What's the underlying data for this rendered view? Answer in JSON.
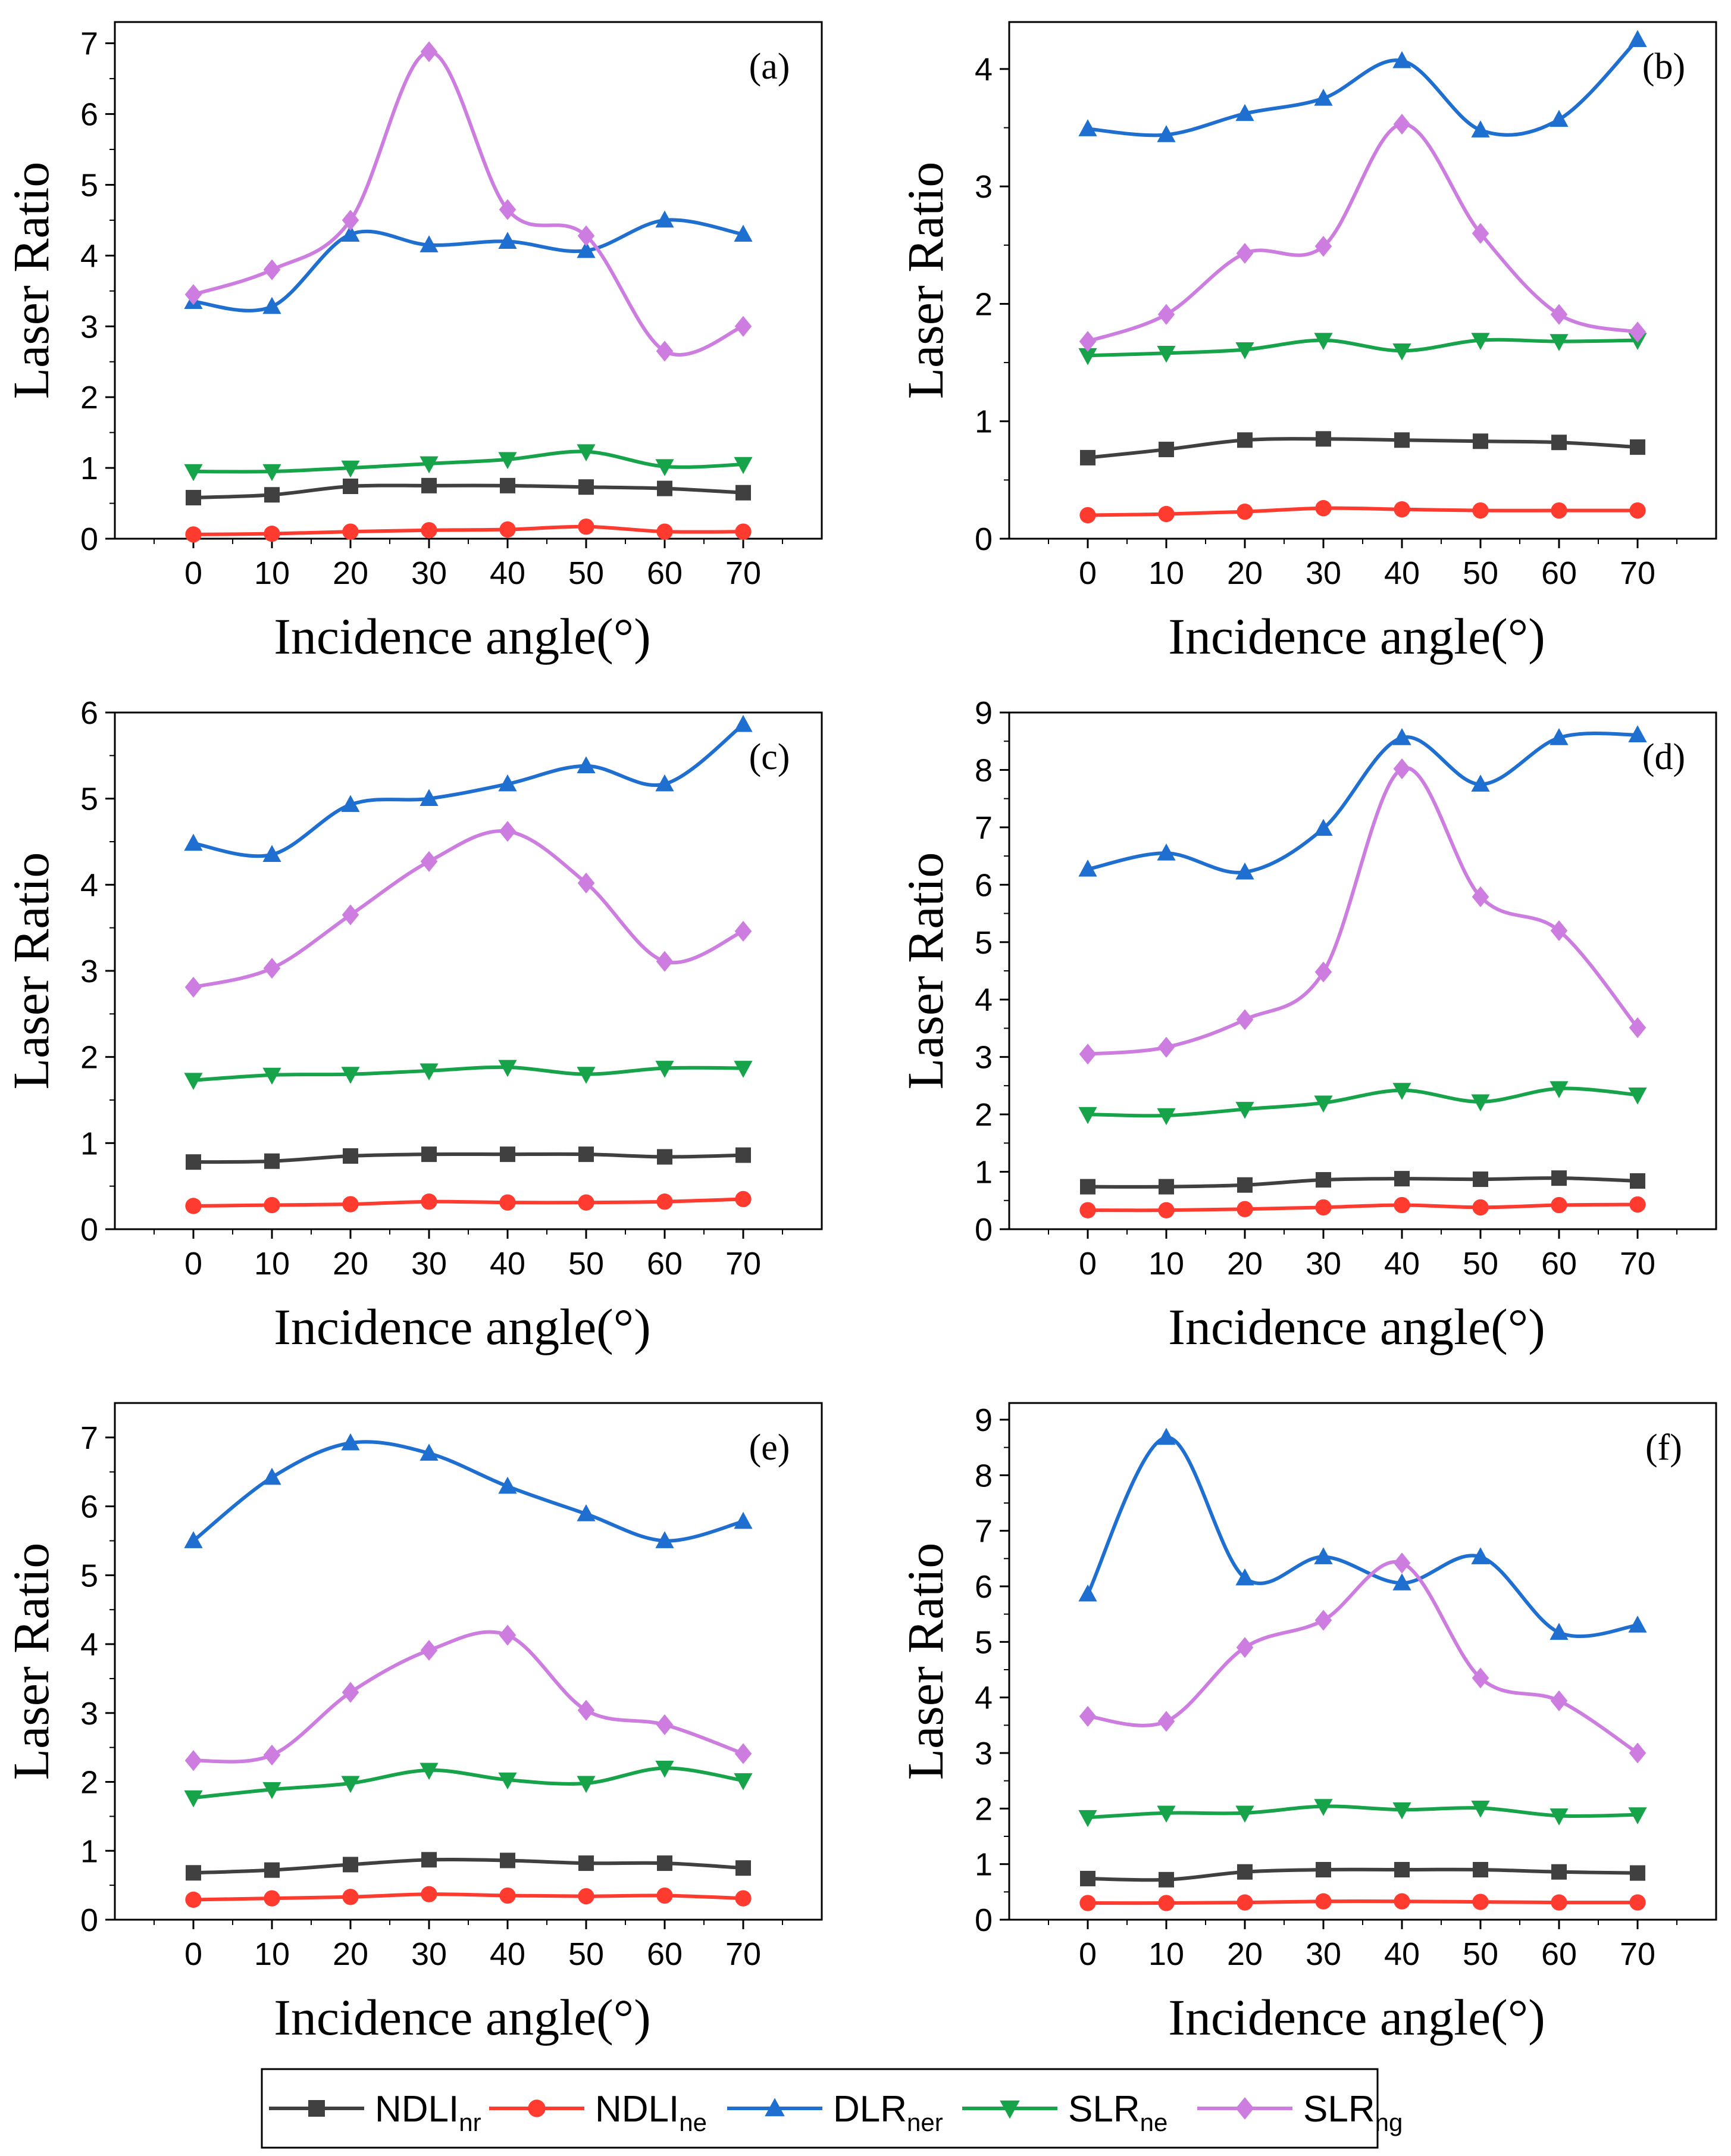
{
  "legend": [
    {
      "main": "NDLI",
      "sub": "nr",
      "color": "#404040",
      "marker": "square"
    },
    {
      "main": "NDLI",
      "sub": "ne",
      "color": "#ff3b30",
      "marker": "circle"
    },
    {
      "main": "DLR",
      "sub": "ner",
      "color": "#1f6fd1",
      "marker": "triangle-up"
    },
    {
      "main": "SLR",
      "sub": "ne",
      "color": "#16a34a",
      "marker": "triangle-down"
    },
    {
      "main": "SLR",
      "sub": "ng",
      "color": "#cc7ddf",
      "marker": "diamond"
    }
  ],
  "chart_data": [
    {
      "type": "line",
      "panel": "(a)",
      "xlabel": "Incidence angle(°)",
      "ylabel": "Laser Ratio",
      "x": [
        0,
        10,
        20,
        30,
        40,
        50,
        60,
        70
      ],
      "xticks": [
        "0",
        "10",
        "20",
        "30",
        "40",
        "50",
        "60",
        "70"
      ],
      "ylim": [
        0,
        7.3
      ],
      "yticks": [
        0,
        1,
        2,
        3,
        4,
        5,
        6,
        7
      ],
      "series": [
        {
          "name": "NDLInr",
          "values": [
            0.58,
            0.62,
            0.74,
            0.75,
            0.75,
            0.73,
            0.71,
            0.65
          ]
        },
        {
          "name": "NDLIne",
          "values": [
            0.06,
            0.07,
            0.1,
            0.12,
            0.13,
            0.17,
            0.1,
            0.1
          ]
        },
        {
          "name": "DLRner",
          "values": [
            3.35,
            3.28,
            4.3,
            4.15,
            4.2,
            4.07,
            4.5,
            4.3
          ]
        },
        {
          "name": "SLRne",
          "values": [
            0.95,
            0.95,
            1.0,
            1.06,
            1.12,
            1.23,
            1.02,
            1.05
          ]
        },
        {
          "name": "SLRng",
          "values": [
            3.45,
            3.8,
            4.5,
            6.88,
            4.65,
            4.28,
            2.65,
            3.0
          ]
        }
      ]
    },
    {
      "type": "line",
      "panel": "(b)",
      "xlabel": "Incidence angle(°)",
      "ylabel": "Laser Ratio",
      "x": [
        0,
        10,
        20,
        30,
        40,
        50,
        60,
        70
      ],
      "xticks": [
        "0",
        "10",
        "20",
        "30",
        "40",
        "50",
        "60",
        "70"
      ],
      "ylim": [
        0,
        4.4
      ],
      "yticks": [
        0,
        1,
        2,
        3,
        4
      ],
      "series": [
        {
          "name": "NDLInr",
          "values": [
            0.69,
            0.76,
            0.84,
            0.85,
            0.84,
            0.83,
            0.82,
            0.78
          ]
        },
        {
          "name": "NDLIne",
          "values": [
            0.2,
            0.21,
            0.23,
            0.26,
            0.25,
            0.24,
            0.24,
            0.24
          ]
        },
        {
          "name": "DLRner",
          "values": [
            3.49,
            3.44,
            3.62,
            3.75,
            4.07,
            3.48,
            3.57,
            4.25
          ]
        },
        {
          "name": "SLRne",
          "values": [
            1.56,
            1.58,
            1.61,
            1.69,
            1.6,
            1.69,
            1.68,
            1.69
          ]
        },
        {
          "name": "SLRng",
          "values": [
            1.68,
            1.91,
            2.43,
            2.49,
            3.53,
            2.6,
            1.91,
            1.76
          ]
        }
      ]
    },
    {
      "type": "line",
      "panel": "(c)",
      "xlabel": "Incidence angle(°)",
      "ylabel": "Laser Ratio",
      "x": [
        0,
        10,
        20,
        30,
        40,
        50,
        60,
        70
      ],
      "xticks": [
        "0",
        "10",
        "20",
        "30",
        "40",
        "50",
        "60",
        "70"
      ],
      "ylim": [
        0,
        6.0
      ],
      "yticks": [
        0,
        1,
        2,
        3,
        4,
        5,
        6
      ],
      "series": [
        {
          "name": "NDLInr",
          "values": [
            0.78,
            0.79,
            0.85,
            0.87,
            0.87,
            0.87,
            0.84,
            0.86
          ]
        },
        {
          "name": "NDLIne",
          "values": [
            0.27,
            0.28,
            0.29,
            0.32,
            0.31,
            0.31,
            0.32,
            0.35
          ]
        },
        {
          "name": "DLRner",
          "values": [
            4.48,
            4.35,
            4.93,
            5.0,
            5.17,
            5.38,
            5.17,
            5.86
          ]
        },
        {
          "name": "SLRne",
          "values": [
            1.73,
            1.79,
            1.8,
            1.84,
            1.88,
            1.8,
            1.87,
            1.87
          ]
        },
        {
          "name": "SLRng",
          "values": [
            2.81,
            3.03,
            3.65,
            4.27,
            4.62,
            4.02,
            3.11,
            3.46
          ]
        }
      ]
    },
    {
      "type": "line",
      "panel": "(d)",
      "xlabel": "Incidence angle(°)",
      "ylabel": "Laser Ratio",
      "x": [
        0,
        10,
        20,
        30,
        40,
        50,
        60,
        70
      ],
      "xticks": [
        "0",
        "10",
        "20",
        "30",
        "40",
        "50",
        "60",
        "70"
      ],
      "ylim": [
        0,
        9.0
      ],
      "yticks": [
        0,
        1,
        2,
        3,
        4,
        5,
        6,
        7,
        8,
        9
      ],
      "series": [
        {
          "name": "NDLInr",
          "values": [
            0.74,
            0.74,
            0.77,
            0.86,
            0.88,
            0.87,
            0.89,
            0.84
          ]
        },
        {
          "name": "NDLIne",
          "values": [
            0.33,
            0.33,
            0.35,
            0.38,
            0.42,
            0.38,
            0.42,
            0.43
          ]
        },
        {
          "name": "DLRner",
          "values": [
            6.27,
            6.55,
            6.22,
            6.98,
            8.56,
            7.75,
            8.56,
            8.61
          ]
        },
        {
          "name": "SLRne",
          "values": [
            2.0,
            1.98,
            2.09,
            2.2,
            2.42,
            2.22,
            2.45,
            2.34
          ]
        },
        {
          "name": "SLRng",
          "values": [
            3.05,
            3.17,
            3.65,
            4.48,
            8.02,
            5.79,
            5.2,
            3.51
          ]
        }
      ]
    },
    {
      "type": "line",
      "panel": "(e)",
      "xlabel": "Incidence angle(°)",
      "ylabel": "Laser Ratio",
      "x": [
        0,
        10,
        20,
        30,
        40,
        50,
        60,
        70
      ],
      "xticks": [
        "0",
        "10",
        "20",
        "30",
        "40",
        "50",
        "60",
        "70"
      ],
      "ylim": [
        0,
        7.5
      ],
      "yticks": [
        0,
        1,
        2,
        3,
        4,
        5,
        6,
        7
      ],
      "series": [
        {
          "name": "NDLInr",
          "values": [
            0.68,
            0.72,
            0.8,
            0.87,
            0.86,
            0.82,
            0.82,
            0.75
          ]
        },
        {
          "name": "NDLIne",
          "values": [
            0.29,
            0.31,
            0.33,
            0.37,
            0.35,
            0.34,
            0.35,
            0.31
          ]
        },
        {
          "name": "DLRner",
          "values": [
            5.5,
            6.42,
            6.92,
            6.77,
            6.29,
            5.89,
            5.5,
            5.78
          ]
        },
        {
          "name": "SLRne",
          "values": [
            1.77,
            1.89,
            1.98,
            2.17,
            2.03,
            1.98,
            2.2,
            2.02
          ]
        },
        {
          "name": "SLRng",
          "values": [
            2.31,
            2.39,
            3.3,
            3.91,
            4.13,
            3.04,
            2.83,
            2.41
          ]
        }
      ]
    },
    {
      "type": "line",
      "panel": "(f)",
      "xlabel": "Incidence angle(°)",
      "ylabel": "Laser Ratio",
      "x": [
        0,
        10,
        20,
        30,
        40,
        50,
        60,
        70
      ],
      "xticks": [
        "0",
        "10",
        "20",
        "30",
        "40",
        "50",
        "60",
        "70"
      ],
      "ylim": [
        0,
        9.3
      ],
      "yticks": [
        0,
        1,
        2,
        3,
        4,
        5,
        6,
        7,
        8,
        9
      ],
      "series": [
        {
          "name": "NDLInr",
          "values": [
            0.74,
            0.72,
            0.86,
            0.9,
            0.9,
            0.9,
            0.86,
            0.84
          ]
        },
        {
          "name": "NDLIne",
          "values": [
            0.3,
            0.3,
            0.31,
            0.33,
            0.33,
            0.32,
            0.31,
            0.31
          ]
        },
        {
          "name": "DLRner",
          "values": [
            5.86,
            8.68,
            6.15,
            6.53,
            6.06,
            6.53,
            5.17,
            5.3
          ]
        },
        {
          "name": "SLRne",
          "values": [
            1.84,
            1.92,
            1.92,
            2.04,
            1.98,
            2.01,
            1.87,
            1.89
          ]
        },
        {
          "name": "SLRng",
          "values": [
            3.66,
            3.57,
            4.9,
            5.39,
            6.42,
            4.35,
            3.94,
            3.0
          ]
        }
      ]
    }
  ]
}
